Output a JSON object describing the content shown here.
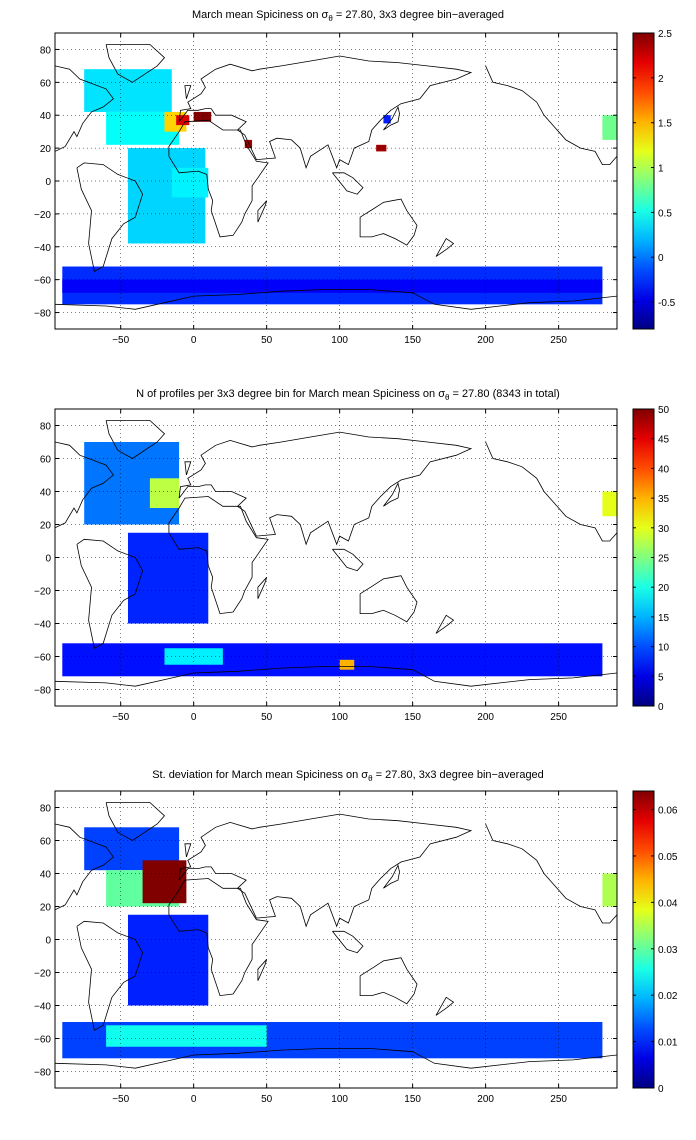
{
  "chart_data": [
    {
      "type": "heatmap",
      "title_prefix": "March mean Spiciness on σ",
      "title_sub": "θ",
      "title_suffix": " = 27.80, 3x3 degree bin−averaged",
      "xlim": [
        -95,
        290
      ],
      "ylim": [
        -90,
        90
      ],
      "xticks": [
        -50,
        0,
        50,
        100,
        150,
        200,
        250
      ],
      "yticks": [
        -80,
        -60,
        -40,
        -20,
        0,
        20,
        40,
        60,
        80
      ],
      "grid": true,
      "colorbar": {
        "clim": [
          -0.8,
          2.5
        ],
        "ticks": [
          "-0.5",
          "0",
          "0.5",
          "1",
          "1.5",
          "2",
          "2.5"
        ],
        "tick_values": [
          -0.5,
          0,
          0.5,
          1,
          1.5,
          2,
          2.5
        ]
      },
      "colormap": "jet",
      "blocks": [
        {
          "x": [
            -75,
            -15
          ],
          "y": [
            42,
            68
          ],
          "v": 0.35
        },
        {
          "x": [
            -60,
            -10
          ],
          "y": [
            22,
            42
          ],
          "v": 0.45
        },
        {
          "x": [
            -20,
            -5
          ],
          "y": [
            30,
            42
          ],
          "v": 1.4
        },
        {
          "x": [
            -12,
            -3
          ],
          "y": [
            34,
            40
          ],
          "v": 2.2
        },
        {
          "x": [
            0,
            12
          ],
          "y": [
            36,
            42
          ],
          "v": 2.5
        },
        {
          "x": [
            -45,
            8
          ],
          "y": [
            -38,
            20
          ],
          "v": 0.3
        },
        {
          "x": [
            -15,
            10
          ],
          "y": [
            -10,
            8
          ],
          "v": 0.4
        },
        {
          "x": [
            -90,
            280
          ],
          "y": [
            -75,
            -52
          ],
          "v": -0.25
        },
        {
          "x": [
            -90,
            280
          ],
          "y": [
            -68,
            -60
          ],
          "v": -0.4
        },
        {
          "x": [
            280,
            290
          ],
          "y": [
            25,
            40
          ],
          "v": 0.8
        },
        {
          "x": [
            125,
            132
          ],
          "y": [
            18,
            22
          ],
          "v": 2.4
        },
        {
          "x": [
            35,
            40
          ],
          "y": [
            20,
            25
          ],
          "v": 2.4
        },
        {
          "x": [
            130,
            135
          ],
          "y": [
            35,
            40
          ],
          "v": -0.3
        }
      ]
    },
    {
      "type": "heatmap",
      "title_prefix": "N of profiles per 3x3 degree bin for March mean Spiciness on σ",
      "title_sub": "θ",
      "title_suffix": " = 27.80 (8343 in total)",
      "xlim": [
        -95,
        290
      ],
      "ylim": [
        -90,
        90
      ],
      "xticks": [
        -50,
        0,
        50,
        100,
        150,
        200,
        250
      ],
      "yticks": [
        -80,
        -60,
        -40,
        -20,
        0,
        20,
        40,
        60,
        80
      ],
      "grid": true,
      "colorbar": {
        "clim": [
          0,
          50
        ],
        "ticks": [
          "0",
          "5",
          "10",
          "15",
          "20",
          "25",
          "30",
          "35",
          "40",
          "45",
          "50"
        ],
        "tick_values": [
          0,
          5,
          10,
          15,
          20,
          25,
          30,
          35,
          40,
          45,
          50
        ]
      },
      "colormap": "jet",
      "blocks": [
        {
          "x": [
            -75,
            -10
          ],
          "y": [
            20,
            70
          ],
          "v": 12
        },
        {
          "x": [
            -30,
            -10
          ],
          "y": [
            30,
            48
          ],
          "v": 28
        },
        {
          "x": [
            -45,
            10
          ],
          "y": [
            -40,
            15
          ],
          "v": 8
        },
        {
          "x": [
            -90,
            280
          ],
          "y": [
            -72,
            -52
          ],
          "v": 7
        },
        {
          "x": [
            -20,
            20
          ],
          "y": [
            -65,
            -55
          ],
          "v": 18
        },
        {
          "x": [
            280,
            290
          ],
          "y": [
            25,
            40
          ],
          "v": 30
        },
        {
          "x": [
            100,
            110
          ],
          "y": [
            -68,
            -62
          ],
          "v": 35
        }
      ]
    },
    {
      "type": "heatmap",
      "title_prefix": "St. deviation for March mean Spiciness on σ",
      "title_sub": "θ",
      "title_suffix": " = 27.80, 3x3 degree bin−averaged",
      "xlim": [
        -95,
        290
      ],
      "ylim": [
        -90,
        90
      ],
      "xticks": [
        -50,
        0,
        50,
        100,
        150,
        200,
        250
      ],
      "yticks": [
        -80,
        -60,
        -40,
        -20,
        0,
        20,
        40,
        60,
        80
      ],
      "grid": true,
      "colorbar": {
        "clim": [
          0,
          0.064
        ],
        "ticks": [
          "0",
          "0.01",
          "0.02",
          "0.03",
          "0.04",
          "0.05",
          "0.06"
        ],
        "tick_values": [
          0,
          0.01,
          0.02,
          0.03,
          0.04,
          0.05,
          0.06
        ]
      },
      "colormap": "jet",
      "blocks": [
        {
          "x": [
            -75,
            -10
          ],
          "y": [
            42,
            68
          ],
          "v": 0.012
        },
        {
          "x": [
            -60,
            -10
          ],
          "y": [
            20,
            42
          ],
          "v": 0.03
        },
        {
          "x": [
            -35,
            -5
          ],
          "y": [
            22,
            48
          ],
          "v": 0.064
        },
        {
          "x": [
            -45,
            10
          ],
          "y": [
            -40,
            15
          ],
          "v": 0.01
        },
        {
          "x": [
            -90,
            280
          ],
          "y": [
            -72,
            -50
          ],
          "v": 0.012
        },
        {
          "x": [
            -60,
            50
          ],
          "y": [
            -65,
            -52
          ],
          "v": 0.025
        },
        {
          "x": [
            280,
            290
          ],
          "y": [
            20,
            40
          ],
          "v": 0.035
        }
      ]
    }
  ]
}
